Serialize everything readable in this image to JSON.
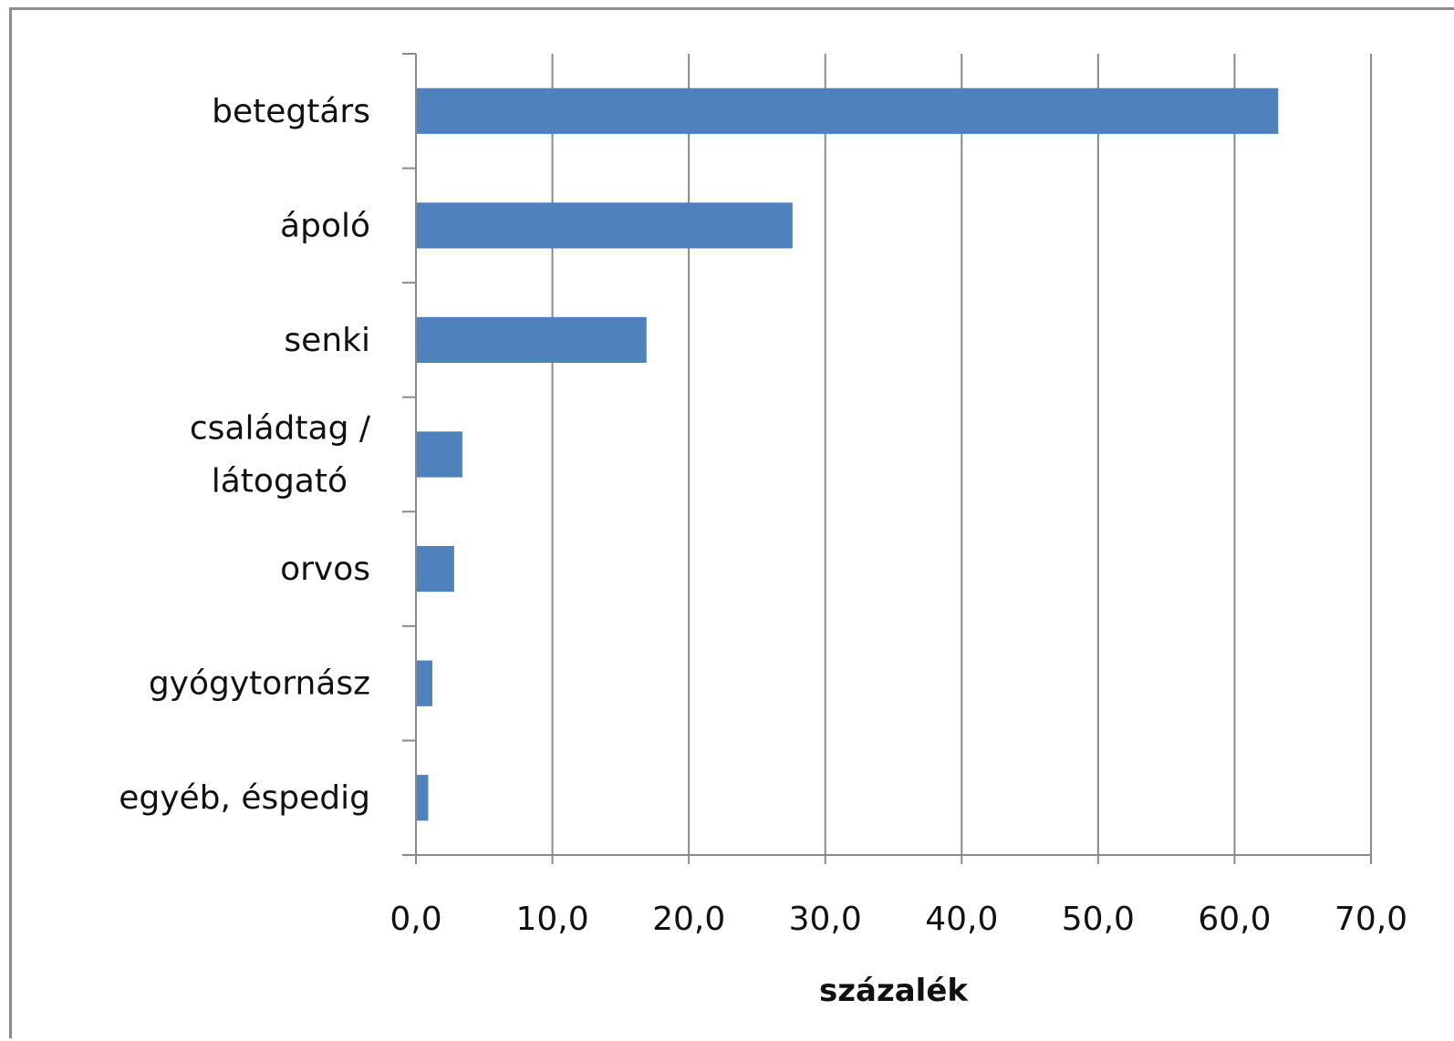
{
  "chart_data": {
    "type": "bar",
    "orientation": "horizontal",
    "categories": [
      "betegtárs",
      "ápoló",
      "senki",
      "családtag /\nlátogató",
      "orvos",
      "gyógytornász",
      "egyéb, éspedig"
    ],
    "values": [
      63.2,
      27.6,
      16.9,
      3.4,
      2.8,
      1.2,
      0.9
    ],
    "xlabel": "százalék",
    "ylabel": "",
    "xlim": [
      0,
      70
    ],
    "x_ticks": [
      "0,0",
      "10,0",
      "20,0",
      "30,0",
      "40,0",
      "50,0",
      "60,0",
      "70,0"
    ],
    "grid": "vertical",
    "legend": "none",
    "bar_color": "#4F81BD"
  }
}
